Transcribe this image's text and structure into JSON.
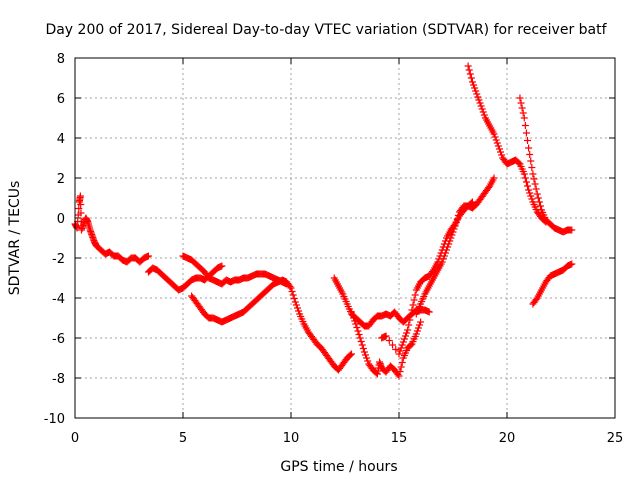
{
  "chart_data": {
    "type": "scatter",
    "title": "Day 200 of 2017, Sidereal Day-to-day VTEC variation (SDTVAR) for receiver batf",
    "xlabel": "GPS time / hours",
    "ylabel": "SDTVAR / TECUs",
    "xlim": [
      0,
      25
    ],
    "ylim": [
      -10,
      8
    ],
    "xticks": [
      "0",
      "5",
      "10",
      "15",
      "20",
      "25"
    ],
    "yticks": [
      "-10",
      "-8",
      "-6",
      "-4",
      "-2",
      "0",
      "2",
      "4",
      "6",
      "8"
    ],
    "grid": true,
    "marker": "+",
    "color": "#ff0000",
    "segments": [
      [
        [
          0.0,
          -0.3
        ],
        [
          0.1,
          -0.5
        ],
        [
          0.2,
          0.8
        ],
        [
          0.25,
          1.1
        ],
        [
          0.3,
          -0.6
        ],
        [
          0.4,
          -0.3
        ],
        [
          0.5,
          0.0
        ],
        [
          0.6,
          -0.2
        ],
        [
          0.7,
          -0.6
        ],
        [
          0.8,
          -0.9
        ],
        [
          0.9,
          -1.2
        ],
        [
          1.0,
          -1.4
        ],
        [
          1.2,
          -1.6
        ],
        [
          1.4,
          -1.8
        ],
        [
          1.6,
          -1.7
        ],
        [
          1.8,
          -1.9
        ],
        [
          2.0,
          -1.9
        ],
        [
          2.2,
          -2.1
        ],
        [
          2.4,
          -2.2
        ],
        [
          2.6,
          -2.0
        ],
        [
          2.8,
          -2.0
        ],
        [
          3.0,
          -2.2
        ],
        [
          3.2,
          -2.0
        ],
        [
          3.4,
          -1.9
        ]
      ],
      [
        [
          3.4,
          -2.7
        ],
        [
          3.6,
          -2.5
        ],
        [
          3.8,
          -2.6
        ],
        [
          4.0,
          -2.8
        ],
        [
          4.2,
          -3.0
        ],
        [
          4.4,
          -3.2
        ],
        [
          4.6,
          -3.4
        ],
        [
          4.8,
          -3.6
        ],
        [
          5.0,
          -3.5
        ],
        [
          5.2,
          -3.3
        ],
        [
          5.4,
          -3.1
        ],
        [
          5.6,
          -3.0
        ],
        [
          5.8,
          -3.0
        ],
        [
          6.0,
          -3.1
        ],
        [
          6.2,
          -2.9
        ],
        [
          6.4,
          -2.7
        ],
        [
          6.6,
          -2.5
        ],
        [
          6.8,
          -2.4
        ]
      ],
      [
        [
          5.0,
          -1.9
        ],
        [
          5.2,
          -2.0
        ],
        [
          5.4,
          -2.1
        ],
        [
          5.6,
          -2.3
        ],
        [
          5.8,
          -2.5
        ],
        [
          6.0,
          -2.7
        ],
        [
          6.2,
          -3.0
        ],
        [
          6.4,
          -3.1
        ],
        [
          6.6,
          -3.2
        ],
        [
          6.8,
          -3.3
        ],
        [
          7.0,
          -3.1
        ],
        [
          7.2,
          -3.2
        ],
        [
          7.4,
          -3.1
        ],
        [
          7.6,
          -3.1
        ],
        [
          7.8,
          -3.0
        ],
        [
          8.0,
          -3.0
        ],
        [
          8.2,
          -2.9
        ],
        [
          8.4,
          -2.8
        ],
        [
          8.6,
          -2.8
        ],
        [
          8.8,
          -2.8
        ],
        [
          9.0,
          -2.9
        ],
        [
          9.2,
          -3.0
        ],
        [
          9.4,
          -3.1
        ],
        [
          9.6,
          -3.2
        ],
        [
          9.8,
          -3.3
        ]
      ],
      [
        [
          5.4,
          -3.9
        ],
        [
          5.6,
          -4.2
        ],
        [
          5.8,
          -4.5
        ],
        [
          6.0,
          -4.8
        ],
        [
          6.2,
          -5.0
        ],
        [
          6.4,
          -5.0
        ],
        [
          6.6,
          -5.1
        ],
        [
          6.8,
          -5.2
        ],
        [
          7.0,
          -5.1
        ],
        [
          7.2,
          -5.0
        ],
        [
          7.4,
          -4.9
        ],
        [
          7.6,
          -4.8
        ],
        [
          7.8,
          -4.7
        ],
        [
          8.0,
          -4.5
        ],
        [
          8.2,
          -4.3
        ],
        [
          8.4,
          -4.1
        ],
        [
          8.6,
          -3.9
        ],
        [
          8.8,
          -3.7
        ],
        [
          9.0,
          -3.5
        ],
        [
          9.2,
          -3.3
        ],
        [
          9.4,
          -3.2
        ],
        [
          9.6,
          -3.1
        ],
        [
          9.8,
          -3.2
        ],
        [
          10.0,
          -3.5
        ],
        [
          10.2,
          -4.2
        ],
        [
          10.4,
          -4.8
        ],
        [
          10.6,
          -5.3
        ],
        [
          10.8,
          -5.7
        ],
        [
          11.0,
          -6.0
        ],
        [
          11.2,
          -6.3
        ],
        [
          11.4,
          -6.5
        ],
        [
          11.6,
          -6.8
        ],
        [
          11.8,
          -7.1
        ],
        [
          12.0,
          -7.4
        ],
        [
          12.2,
          -7.6
        ],
        [
          12.4,
          -7.3
        ],
        [
          12.6,
          -7.0
        ],
        [
          12.8,
          -6.8
        ]
      ],
      [
        [
          12.0,
          -3.0
        ],
        [
          12.2,
          -3.4
        ],
        [
          12.4,
          -3.8
        ],
        [
          12.6,
          -4.3
        ],
        [
          12.8,
          -4.8
        ],
        [
          13.0,
          -5.0
        ],
        [
          13.2,
          -5.2
        ],
        [
          13.4,
          -5.4
        ],
        [
          13.6,
          -5.4
        ],
        [
          13.8,
          -5.1
        ],
        [
          14.0,
          -4.9
        ],
        [
          14.2,
          -4.9
        ],
        [
          14.4,
          -4.8
        ],
        [
          14.6,
          -4.9
        ],
        [
          14.8,
          -4.7
        ],
        [
          15.0,
          -5.0
        ],
        [
          15.2,
          -5.2
        ],
        [
          15.4,
          -5.0
        ],
        [
          15.6,
          -4.8
        ],
        [
          15.8,
          -4.6
        ],
        [
          16.0,
          -4.6
        ],
        [
          16.2,
          -4.6
        ],
        [
          16.4,
          -4.7
        ]
      ],
      [
        [
          12.8,
          -4.7
        ],
        [
          13.0,
          -5.3
        ],
        [
          13.2,
          -6.0
        ],
        [
          13.4,
          -6.7
        ],
        [
          13.6,
          -7.3
        ],
        [
          13.8,
          -7.6
        ],
        [
          14.0,
          -7.8
        ],
        [
          14.1,
          -7.2
        ],
        [
          14.2,
          -7.5
        ],
        [
          14.4,
          -7.7
        ],
        [
          14.6,
          -7.4
        ],
        [
          14.8,
          -7.6
        ],
        [
          15.0,
          -7.9
        ],
        [
          15.2,
          -7.0
        ],
        [
          15.4,
          -6.5
        ],
        [
          15.6,
          -6.3
        ],
        [
          15.8,
          -5.8
        ],
        [
          16.0,
          -5.2
        ]
      ],
      [
        [
          14.2,
          -6.0
        ],
        [
          14.4,
          -5.9
        ],
        [
          15.0,
          -6.8
        ],
        [
          15.2,
          -6.2
        ],
        [
          15.4,
          -5.6
        ],
        [
          15.6,
          -4.6
        ],
        [
          15.8,
          -3.6
        ],
        [
          16.0,
          -3.2
        ],
        [
          16.2,
          -3.0
        ],
        [
          16.4,
          -2.9
        ],
        [
          16.6,
          -2.6
        ],
        [
          16.8,
          -2.2
        ],
        [
          17.0,
          -1.6
        ],
        [
          17.2,
          -1.0
        ],
        [
          17.4,
          -0.6
        ],
        [
          17.6,
          -0.3
        ],
        [
          17.8,
          0.1
        ],
        [
          18.0,
          0.4
        ],
        [
          18.2,
          0.6
        ],
        [
          18.4,
          0.5
        ],
        [
          18.6,
          0.7
        ],
        [
          18.8,
          1.0
        ],
        [
          19.0,
          1.3
        ],
        [
          19.2,
          1.6
        ],
        [
          19.4,
          2.0
        ]
      ],
      [
        [
          15.8,
          -4.8
        ],
        [
          16.0,
          -4.3
        ],
        [
          16.2,
          -3.8
        ],
        [
          16.4,
          -3.4
        ],
        [
          16.6,
          -3.0
        ],
        [
          16.8,
          -2.6
        ],
        [
          17.0,
          -2.2
        ],
        [
          17.2,
          -1.6
        ],
        [
          17.4,
          -1.0
        ],
        [
          17.6,
          -0.4
        ],
        [
          17.8,
          0.3
        ],
        [
          18.0,
          0.6
        ],
        [
          18.2,
          0.6
        ],
        [
          18.4,
          0.8
        ]
      ],
      [
        [
          18.2,
          7.6
        ],
        [
          18.4,
          6.8
        ],
        [
          18.6,
          6.2
        ],
        [
          18.8,
          5.6
        ],
        [
          19.0,
          5.0
        ],
        [
          19.2,
          4.6
        ],
        [
          19.4,
          4.2
        ],
        [
          19.6,
          3.6
        ],
        [
          19.8,
          3.0
        ],
        [
          20.0,
          2.7
        ],
        [
          20.2,
          2.8
        ],
        [
          20.4,
          2.9
        ],
        [
          20.6,
          2.7
        ],
        [
          20.8,
          2.2
        ],
        [
          21.0,
          1.4
        ],
        [
          21.2,
          0.8
        ],
        [
          21.4,
          0.3
        ],
        [
          21.6,
          0.0
        ],
        [
          21.8,
          -0.2
        ]
      ],
      [
        [
          20.6,
          6.0
        ],
        [
          20.8,
          5.0
        ],
        [
          21.0,
          3.5
        ],
        [
          21.2,
          2.2
        ],
        [
          21.4,
          1.2
        ],
        [
          21.6,
          0.4
        ],
        [
          21.8,
          -0.1
        ],
        [
          22.0,
          -0.3
        ],
        [
          22.2,
          -0.5
        ],
        [
          22.4,
          -0.6
        ],
        [
          22.6,
          -0.7
        ],
        [
          22.8,
          -0.6
        ],
        [
          23.0,
          -0.6
        ]
      ],
      [
        [
          21.2,
          -4.3
        ],
        [
          21.4,
          -4.0
        ],
        [
          21.6,
          -3.6
        ],
        [
          21.8,
          -3.2
        ],
        [
          22.0,
          -2.9
        ],
        [
          22.2,
          -2.8
        ],
        [
          22.4,
          -2.7
        ],
        [
          22.6,
          -2.6
        ],
        [
          22.8,
          -2.4
        ],
        [
          23.0,
          -2.3
        ]
      ]
    ]
  }
}
